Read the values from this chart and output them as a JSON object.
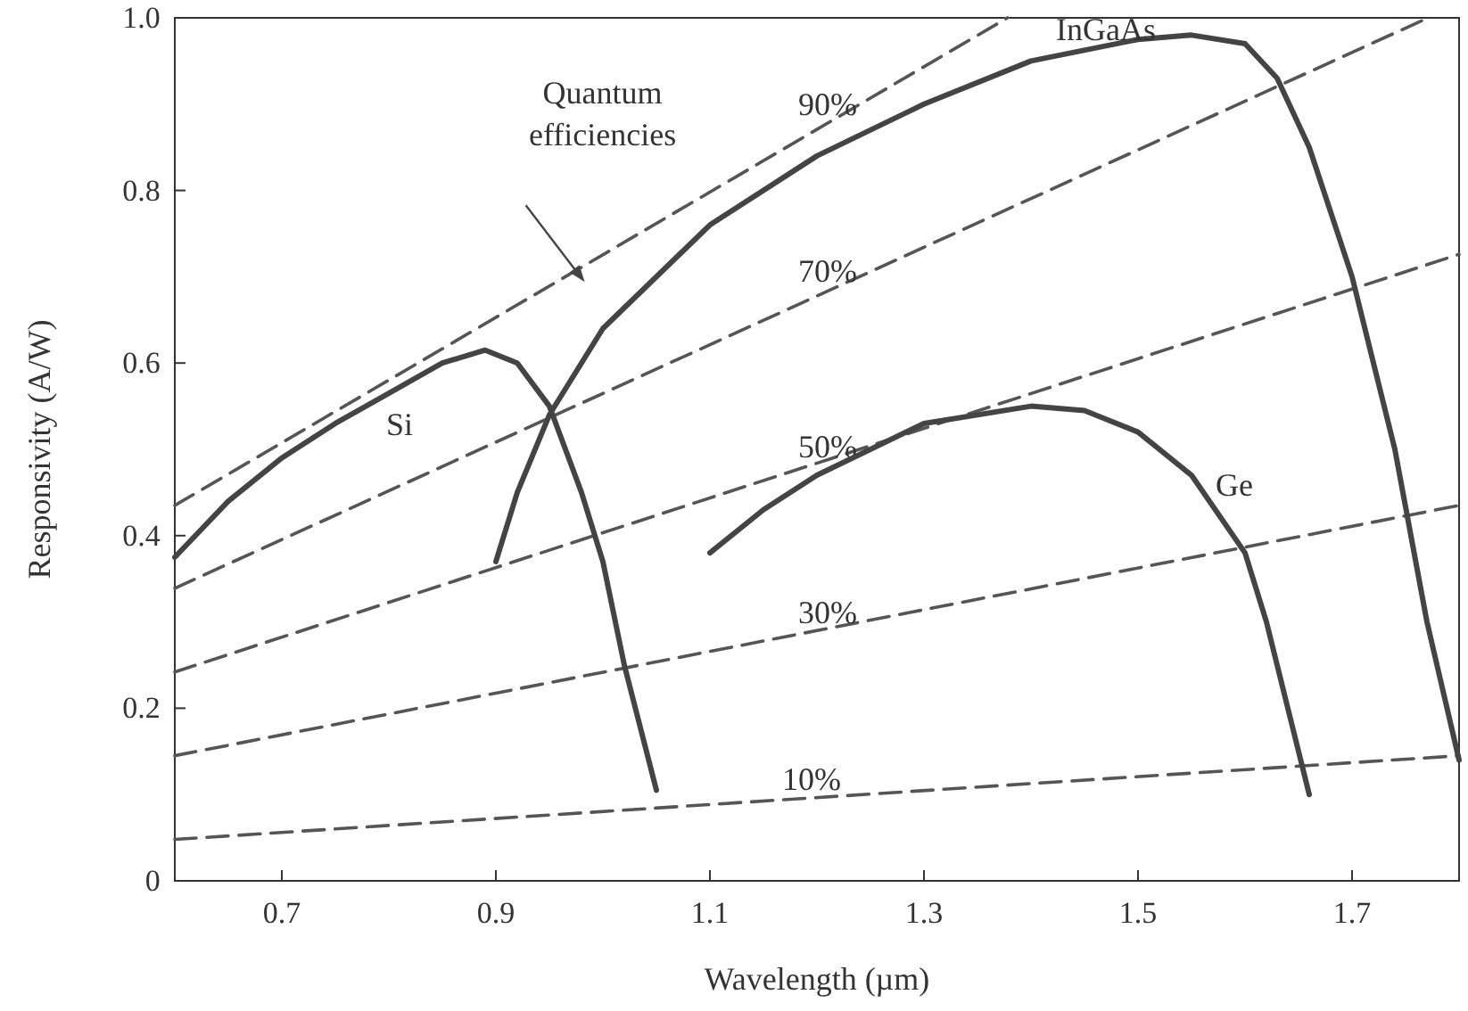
{
  "chart_data": {
    "type": "line",
    "xlabel": "Wavelength (µm)",
    "ylabel": "Responsivity (A/W)",
    "xlim": [
      0.6,
      1.8
    ],
    "ylim": [
      0,
      1.0
    ],
    "xticks": [
      0.7,
      0.9,
      1.1,
      1.3,
      1.5,
      1.7
    ],
    "yticks": [
      0,
      {
        "value": 0.2,
        "label": "0.2"
      },
      {
        "value": 0.4,
        "label": "0.4"
      },
      {
        "value": 0.6,
        "label": "0.6"
      },
      {
        "value": 0.8,
        "label": "0.8"
      },
      {
        "value": 1.0,
        "label": "1.0"
      }
    ],
    "grid": false,
    "marker": "none",
    "series": [
      {
        "name": "10%",
        "color": "#555555",
        "line_style": "dashed",
        "x": [
          0.6,
          1.8
        ],
        "values": [
          0.048,
          0.145
        ]
      },
      {
        "name": "30%",
        "color": "#555555",
        "line_style": "dashed",
        "x": [
          0.6,
          1.8
        ],
        "values": [
          0.145,
          0.435
        ]
      },
      {
        "name": "50%",
        "color": "#555555",
        "line_style": "dashed",
        "x": [
          0.6,
          1.8
        ],
        "values": [
          0.242,
          0.726
        ]
      },
      {
        "name": "70%",
        "color": "#555555",
        "line_style": "dashed",
        "x": [
          0.6,
          1.771
        ],
        "values": [
          0.339,
          1.0
        ]
      },
      {
        "name": "90%",
        "color": "#555555",
        "line_style": "dashed",
        "x": [
          0.6,
          1.378
        ],
        "values": [
          0.435,
          1.0
        ]
      },
      {
        "name": "Si",
        "color": "#444444",
        "line_style": "solid",
        "x": [
          0.6,
          0.65,
          0.7,
          0.75,
          0.8,
          0.85,
          0.89,
          0.92,
          0.95,
          0.98,
          1.0,
          1.02,
          1.05
        ],
        "values": [
          0.375,
          0.44,
          0.49,
          0.53,
          0.565,
          0.6,
          0.615,
          0.6,
          0.55,
          0.45,
          0.37,
          0.25,
          0.105
        ]
      },
      {
        "name": "InGaAs",
        "color": "#444444",
        "line_style": "solid",
        "x": [
          0.9,
          0.92,
          0.95,
          1.0,
          1.1,
          1.2,
          1.3,
          1.4,
          1.5,
          1.55,
          1.6,
          1.63,
          1.66,
          1.7,
          1.74,
          1.77,
          1.8
        ],
        "values": [
          0.37,
          0.45,
          0.54,
          0.64,
          0.76,
          0.84,
          0.9,
          0.95,
          0.975,
          0.98,
          0.97,
          0.93,
          0.85,
          0.7,
          0.5,
          0.3,
          0.14
        ]
      },
      {
        "name": "Ge",
        "color": "#444444",
        "line_style": "solid",
        "x": [
          1.1,
          1.15,
          1.2,
          1.3,
          1.4,
          1.45,
          1.5,
          1.55,
          1.6,
          1.62,
          1.64,
          1.66
        ],
        "values": [
          0.38,
          0.43,
          0.47,
          0.53,
          0.55,
          0.545,
          0.52,
          0.47,
          0.38,
          0.3,
          0.2,
          0.1
        ]
      }
    ],
    "annotations": [
      "Quantum efficiencies"
    ]
  }
}
